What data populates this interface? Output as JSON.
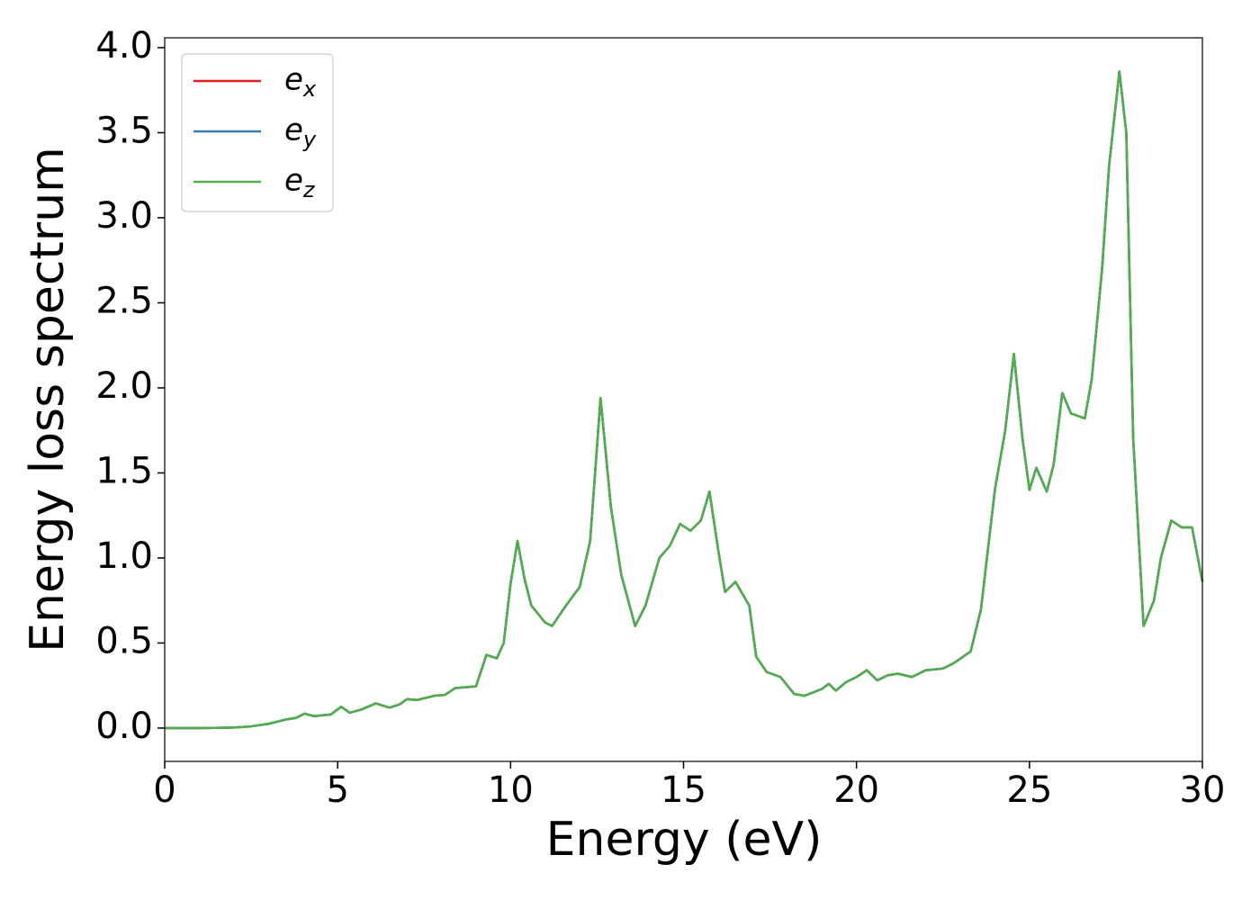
{
  "chart_data": {
    "type": "line",
    "xlabel": "Energy (eV)",
    "ylabel": "Energy loss spectrum",
    "x": [
      0,
      1,
      2,
      2.5,
      3,
      3.5,
      3.8,
      4.05,
      4.3,
      4.8,
      5.1,
      5.35,
      5.7,
      6.1,
      6.5,
      6.8,
      7.0,
      7.3,
      7.8,
      8.1,
      8.4,
      9.0,
      9.3,
      9.6,
      9.8,
      10.0,
      10.2,
      10.4,
      10.6,
      11.0,
      11.2,
      11.6,
      12.0,
      12.3,
      12.6,
      12.9,
      13.2,
      13.6,
      13.9,
      14.3,
      14.6,
      14.9,
      15.2,
      15.5,
      15.75,
      16.0,
      16.2,
      16.5,
      16.9,
      17.1,
      17.4,
      17.8,
      18.2,
      18.5,
      19.0,
      19.2,
      19.4,
      19.7,
      20.0,
      20.3,
      20.6,
      20.9,
      21.2,
      21.6,
      22.0,
      22.5,
      22.8,
      23.3,
      23.6,
      24.0,
      24.3,
      24.55,
      24.8,
      25.0,
      25.2,
      25.5,
      25.7,
      25.95,
      26.2,
      26.6,
      26.8,
      27.1,
      27.3,
      27.6,
      27.8,
      28.0,
      28.3,
      28.6,
      28.8,
      29.1,
      29.4,
      29.7,
      30.0
    ],
    "series": [
      {
        "name": "ex",
        "color": "#e41a1c",
        "values": [
          0,
          0,
          0.003,
          0.01,
          0.025,
          0.05,
          0.06,
          0.085,
          0.07,
          0.08,
          0.125,
          0.09,
          0.11,
          0.145,
          0.12,
          0.14,
          0.17,
          0.165,
          0.19,
          0.195,
          0.235,
          0.245,
          0.43,
          0.41,
          0.5,
          0.85,
          1.1,
          0.88,
          0.72,
          0.62,
          0.6,
          0.72,
          0.83,
          1.1,
          1.94,
          1.3,
          0.9,
          0.6,
          0.72,
          1.0,
          1.07,
          1.2,
          1.16,
          1.22,
          1.39,
          1.05,
          0.8,
          0.86,
          0.72,
          0.42,
          0.33,
          0.3,
          0.2,
          0.19,
          0.23,
          0.26,
          0.22,
          0.27,
          0.3,
          0.34,
          0.28,
          0.31,
          0.32,
          0.3,
          0.34,
          0.35,
          0.38,
          0.45,
          0.7,
          1.4,
          1.75,
          2.2,
          1.7,
          1.4,
          1.53,
          1.39,
          1.55,
          1.97,
          1.85,
          1.82,
          2.05,
          2.7,
          3.3,
          3.86,
          3.5,
          1.7,
          0.6,
          0.75,
          1.0,
          1.22,
          1.18,
          1.18,
          0.86
        ]
      },
      {
        "name": "ey",
        "color": "#377eb8",
        "values": [
          0,
          0,
          0.003,
          0.01,
          0.025,
          0.05,
          0.06,
          0.085,
          0.07,
          0.08,
          0.125,
          0.09,
          0.11,
          0.145,
          0.12,
          0.14,
          0.17,
          0.165,
          0.19,
          0.195,
          0.235,
          0.245,
          0.43,
          0.41,
          0.5,
          0.85,
          1.1,
          0.88,
          0.72,
          0.62,
          0.6,
          0.72,
          0.83,
          1.1,
          1.94,
          1.3,
          0.9,
          0.6,
          0.72,
          1.0,
          1.07,
          1.2,
          1.16,
          1.22,
          1.39,
          1.05,
          0.8,
          0.86,
          0.72,
          0.42,
          0.33,
          0.3,
          0.2,
          0.19,
          0.23,
          0.26,
          0.22,
          0.27,
          0.3,
          0.34,
          0.28,
          0.31,
          0.32,
          0.3,
          0.34,
          0.35,
          0.38,
          0.45,
          0.7,
          1.4,
          1.75,
          2.2,
          1.7,
          1.4,
          1.53,
          1.39,
          1.55,
          1.97,
          1.85,
          1.82,
          2.05,
          2.7,
          3.3,
          3.86,
          3.5,
          1.7,
          0.6,
          0.75,
          1.0,
          1.22,
          1.18,
          1.18,
          0.86
        ]
      },
      {
        "name": "ez",
        "color": "#4daf4a",
        "values": [
          0,
          0,
          0.003,
          0.01,
          0.025,
          0.05,
          0.06,
          0.085,
          0.07,
          0.08,
          0.125,
          0.09,
          0.11,
          0.145,
          0.12,
          0.14,
          0.17,
          0.165,
          0.19,
          0.195,
          0.235,
          0.245,
          0.43,
          0.41,
          0.5,
          0.85,
          1.1,
          0.88,
          0.72,
          0.62,
          0.6,
          0.72,
          0.83,
          1.1,
          1.94,
          1.3,
          0.9,
          0.6,
          0.72,
          1.0,
          1.07,
          1.2,
          1.16,
          1.22,
          1.39,
          1.05,
          0.8,
          0.86,
          0.72,
          0.42,
          0.33,
          0.3,
          0.2,
          0.19,
          0.23,
          0.26,
          0.22,
          0.27,
          0.3,
          0.34,
          0.28,
          0.31,
          0.32,
          0.3,
          0.34,
          0.35,
          0.38,
          0.45,
          0.7,
          1.4,
          1.75,
          2.2,
          1.7,
          1.4,
          1.53,
          1.39,
          1.55,
          1.97,
          1.85,
          1.82,
          2.05,
          2.7,
          3.3,
          3.86,
          3.5,
          1.7,
          0.6,
          0.75,
          1.0,
          1.22,
          1.18,
          1.18,
          0.86
        ]
      }
    ],
    "xlim": [
      0,
      30
    ],
    "xticks": [
      0,
      5,
      10,
      15,
      20,
      25,
      30
    ],
    "ylim": [
      -0.196,
      4.058
    ],
    "yticks": [
      {
        "value": 0,
        "label": "0.0"
      },
      0.5,
      {
        "value": 1,
        "label": "1.0"
      },
      1.5,
      {
        "value": 2,
        "label": "2.0"
      },
      2.5,
      {
        "value": 3,
        "label": "3.0"
      },
      3.5,
      {
        "value": 4,
        "label": "4.0"
      }
    ],
    "legend": "upper left",
    "grid": false
  }
}
